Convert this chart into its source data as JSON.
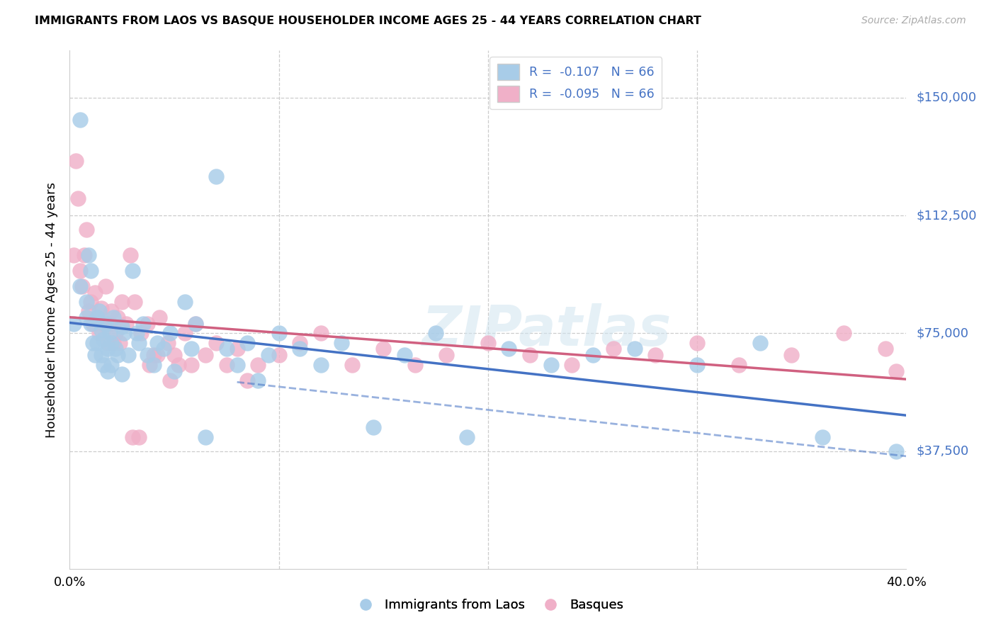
{
  "title": "IMMIGRANTS FROM LAOS VS BASQUE HOUSEHOLDER INCOME AGES 25 - 44 YEARS CORRELATION CHART",
  "source": "Source: ZipAtlas.com",
  "ylabel": "Householder Income Ages 25 - 44 years",
  "scatter_label1": "Immigrants from Laos",
  "scatter_label2": "Basques",
  "scatter_color1": "#a8cce8",
  "scatter_color2": "#f0b0c8",
  "trend_color1": "#4472c4",
  "trend_color2": "#d06080",
  "watermark": "ZIPatlas",
  "r1": -0.107,
  "r2": -0.095,
  "n": 66,
  "ytick_vals": [
    37500,
    75000,
    112500,
    150000
  ],
  "ytick_lbls": [
    "$37,500",
    "$75,000",
    "$112,500",
    "$150,000"
  ],
  "blue_x": [
    0.002,
    0.005,
    0.005,
    0.008,
    0.008,
    0.009,
    0.01,
    0.01,
    0.011,
    0.012,
    0.013,
    0.013,
    0.014,
    0.015,
    0.015,
    0.016,
    0.016,
    0.017,
    0.018,
    0.018,
    0.019,
    0.02,
    0.02,
    0.021,
    0.022,
    0.023,
    0.025,
    0.025,
    0.026,
    0.028,
    0.03,
    0.032,
    0.033,
    0.035,
    0.037,
    0.04,
    0.042,
    0.045,
    0.048,
    0.05,
    0.055,
    0.058,
    0.06,
    0.065,
    0.07,
    0.075,
    0.08,
    0.085,
    0.09,
    0.095,
    0.1,
    0.11,
    0.12,
    0.13,
    0.145,
    0.16,
    0.175,
    0.19,
    0.21,
    0.23,
    0.25,
    0.27,
    0.3,
    0.33,
    0.36,
    0.395
  ],
  "blue_y": [
    78000,
    143000,
    90000,
    85000,
    80000,
    100000,
    95000,
    78000,
    72000,
    68000,
    80000,
    72000,
    82000,
    76000,
    68000,
    73000,
    65000,
    78000,
    70000,
    63000,
    75000,
    72000,
    65000,
    80000,
    70000,
    68000,
    77000,
    62000,
    75000,
    68000,
    95000,
    75000,
    72000,
    78000,
    68000,
    65000,
    72000,
    70000,
    75000,
    63000,
    85000,
    70000,
    78000,
    42000,
    125000,
    70000,
    65000,
    72000,
    60000,
    68000,
    75000,
    70000,
    65000,
    72000,
    45000,
    68000,
    75000,
    42000,
    70000,
    65000,
    68000,
    70000,
    65000,
    72000,
    42000,
    37500
  ],
  "pink_x": [
    0.002,
    0.003,
    0.004,
    0.005,
    0.006,
    0.007,
    0.008,
    0.009,
    0.01,
    0.011,
    0.012,
    0.013,
    0.014,
    0.015,
    0.016,
    0.017,
    0.018,
    0.019,
    0.02,
    0.021,
    0.022,
    0.023,
    0.024,
    0.025,
    0.027,
    0.029,
    0.031,
    0.034,
    0.037,
    0.04,
    0.043,
    0.047,
    0.05,
    0.055,
    0.06,
    0.065,
    0.07,
    0.075,
    0.08,
    0.085,
    0.09,
    0.1,
    0.11,
    0.12,
    0.135,
    0.15,
    0.165,
    0.18,
    0.2,
    0.22,
    0.24,
    0.26,
    0.28,
    0.3,
    0.32,
    0.345,
    0.37,
    0.39,
    0.395,
    0.03,
    0.033,
    0.038,
    0.042,
    0.048,
    0.052,
    0.058
  ],
  "pink_y": [
    100000,
    130000,
    118000,
    95000,
    90000,
    100000,
    108000,
    82000,
    85000,
    78000,
    88000,
    80000,
    75000,
    83000,
    78000,
    90000,
    72000,
    78000,
    82000,
    72000,
    75000,
    80000,
    72000,
    85000,
    78000,
    100000,
    85000,
    75000,
    78000,
    68000,
    80000,
    72000,
    68000,
    75000,
    78000,
    68000,
    72000,
    65000,
    70000,
    60000,
    65000,
    68000,
    72000,
    75000,
    65000,
    70000,
    65000,
    68000,
    72000,
    68000,
    65000,
    70000,
    68000,
    72000,
    65000,
    68000,
    75000,
    70000,
    63000,
    42000,
    42000,
    65000,
    68000,
    60000,
    65000,
    65000
  ]
}
